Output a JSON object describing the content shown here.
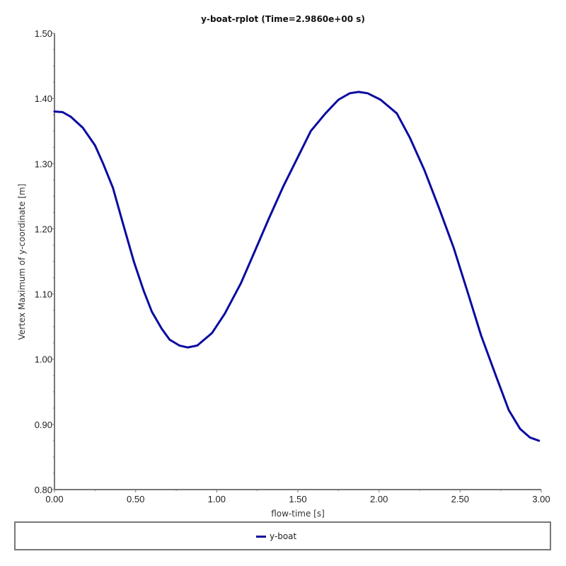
{
  "title": "y-boat-rplot (Time=2.9860e+00 s)",
  "colors": {
    "series": "#0a0aa0",
    "axis": "#777777",
    "legend_border": "#777777"
  },
  "legend": {
    "items": [
      {
        "label": "y-boat",
        "color": "#0a0aa0"
      }
    ]
  },
  "chart_data": {
    "type": "line",
    "title": "y-boat-rplot (Time=2.9860e+00 s)",
    "xlabel": "flow-time [s]",
    "ylabel": "Vertex Maximum of y-coordinate [m]",
    "xlim": [
      0.0,
      3.0
    ],
    "ylim": [
      0.8,
      1.5
    ],
    "xticks": [
      "0.00",
      "0.50",
      "1.00",
      "1.50",
      "2.00",
      "2.50",
      "3.00"
    ],
    "yticks": [
      "0.80",
      "0.90",
      "1.00",
      "1.10",
      "1.20",
      "1.30",
      "1.40",
      "1.50"
    ],
    "grid": false,
    "legend_position": "bottom",
    "series": [
      {
        "name": "y-boat",
        "color": "#0a0aa0",
        "x": [
          0.0,
          0.05,
          0.1,
          0.175,
          0.25,
          0.3,
          0.36,
          0.42,
          0.49,
          0.55,
          0.6,
          0.66,
          0.71,
          0.77,
          0.82,
          0.88,
          0.97,
          1.05,
          1.15,
          1.23,
          1.32,
          1.41,
          1.5,
          1.58,
          1.67,
          1.75,
          1.82,
          1.875,
          1.93,
          2.01,
          2.11,
          2.19,
          2.28,
          2.37,
          2.46,
          2.55,
          2.63,
          2.72,
          2.8,
          2.87,
          2.93,
          2.986
        ],
        "y": [
          1.38,
          1.379,
          1.372,
          1.355,
          1.328,
          1.3,
          1.263,
          1.21,
          1.149,
          1.105,
          1.073,
          1.047,
          1.03,
          1.021,
          1.018,
          1.021,
          1.04,
          1.07,
          1.117,
          1.163,
          1.215,
          1.265,
          1.31,
          1.35,
          1.377,
          1.398,
          1.408,
          1.41,
          1.408,
          1.398,
          1.377,
          1.34,
          1.29,
          1.232,
          1.171,
          1.1,
          1.036,
          0.975,
          0.922,
          0.893,
          0.88,
          0.875
        ]
      }
    ]
  }
}
